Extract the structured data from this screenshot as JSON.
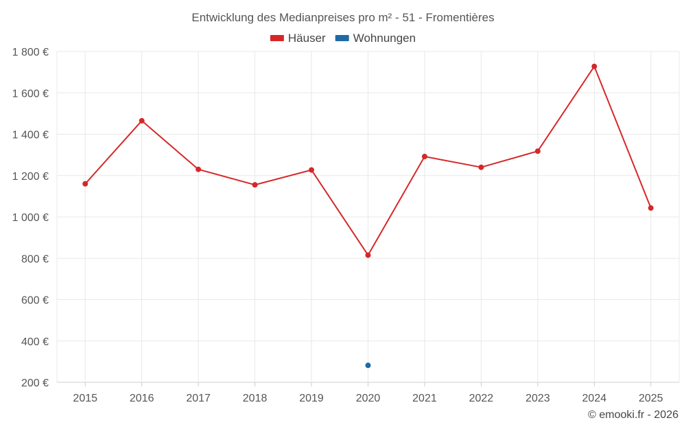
{
  "chart_data": {
    "type": "line",
    "title": "Entwicklung des Medianpreises pro m² - 51 - Fromentières",
    "categories": [
      "2015",
      "2016",
      "2017",
      "2018",
      "2019",
      "2020",
      "2021",
      "2022",
      "2023",
      "2024",
      "2025"
    ],
    "ylim": [
      200,
      1800
    ],
    "yticks": [
      200,
      400,
      600,
      800,
      1000,
      1200,
      1400,
      1600,
      1800
    ],
    "ytick_labels": [
      "200 €",
      "400 €",
      "600 €",
      "800 €",
      "1 000 €",
      "1 200 €",
      "1 400 €",
      "1 600 €",
      "1 800 €"
    ],
    "grid": true,
    "legend_position": "top-center",
    "series": [
      {
        "name": "Häuser",
        "color": "#d62728",
        "values": [
          1160,
          1465,
          1230,
          1155,
          1227,
          815,
          1292,
          1240,
          1318,
          1728,
          1043
        ]
      },
      {
        "name": "Wohnungen",
        "color": "#1f6aa5",
        "values": [
          null,
          null,
          null,
          null,
          null,
          282,
          null,
          null,
          null,
          null,
          null
        ]
      }
    ]
  },
  "credit": "© emooki.fr - 2026"
}
